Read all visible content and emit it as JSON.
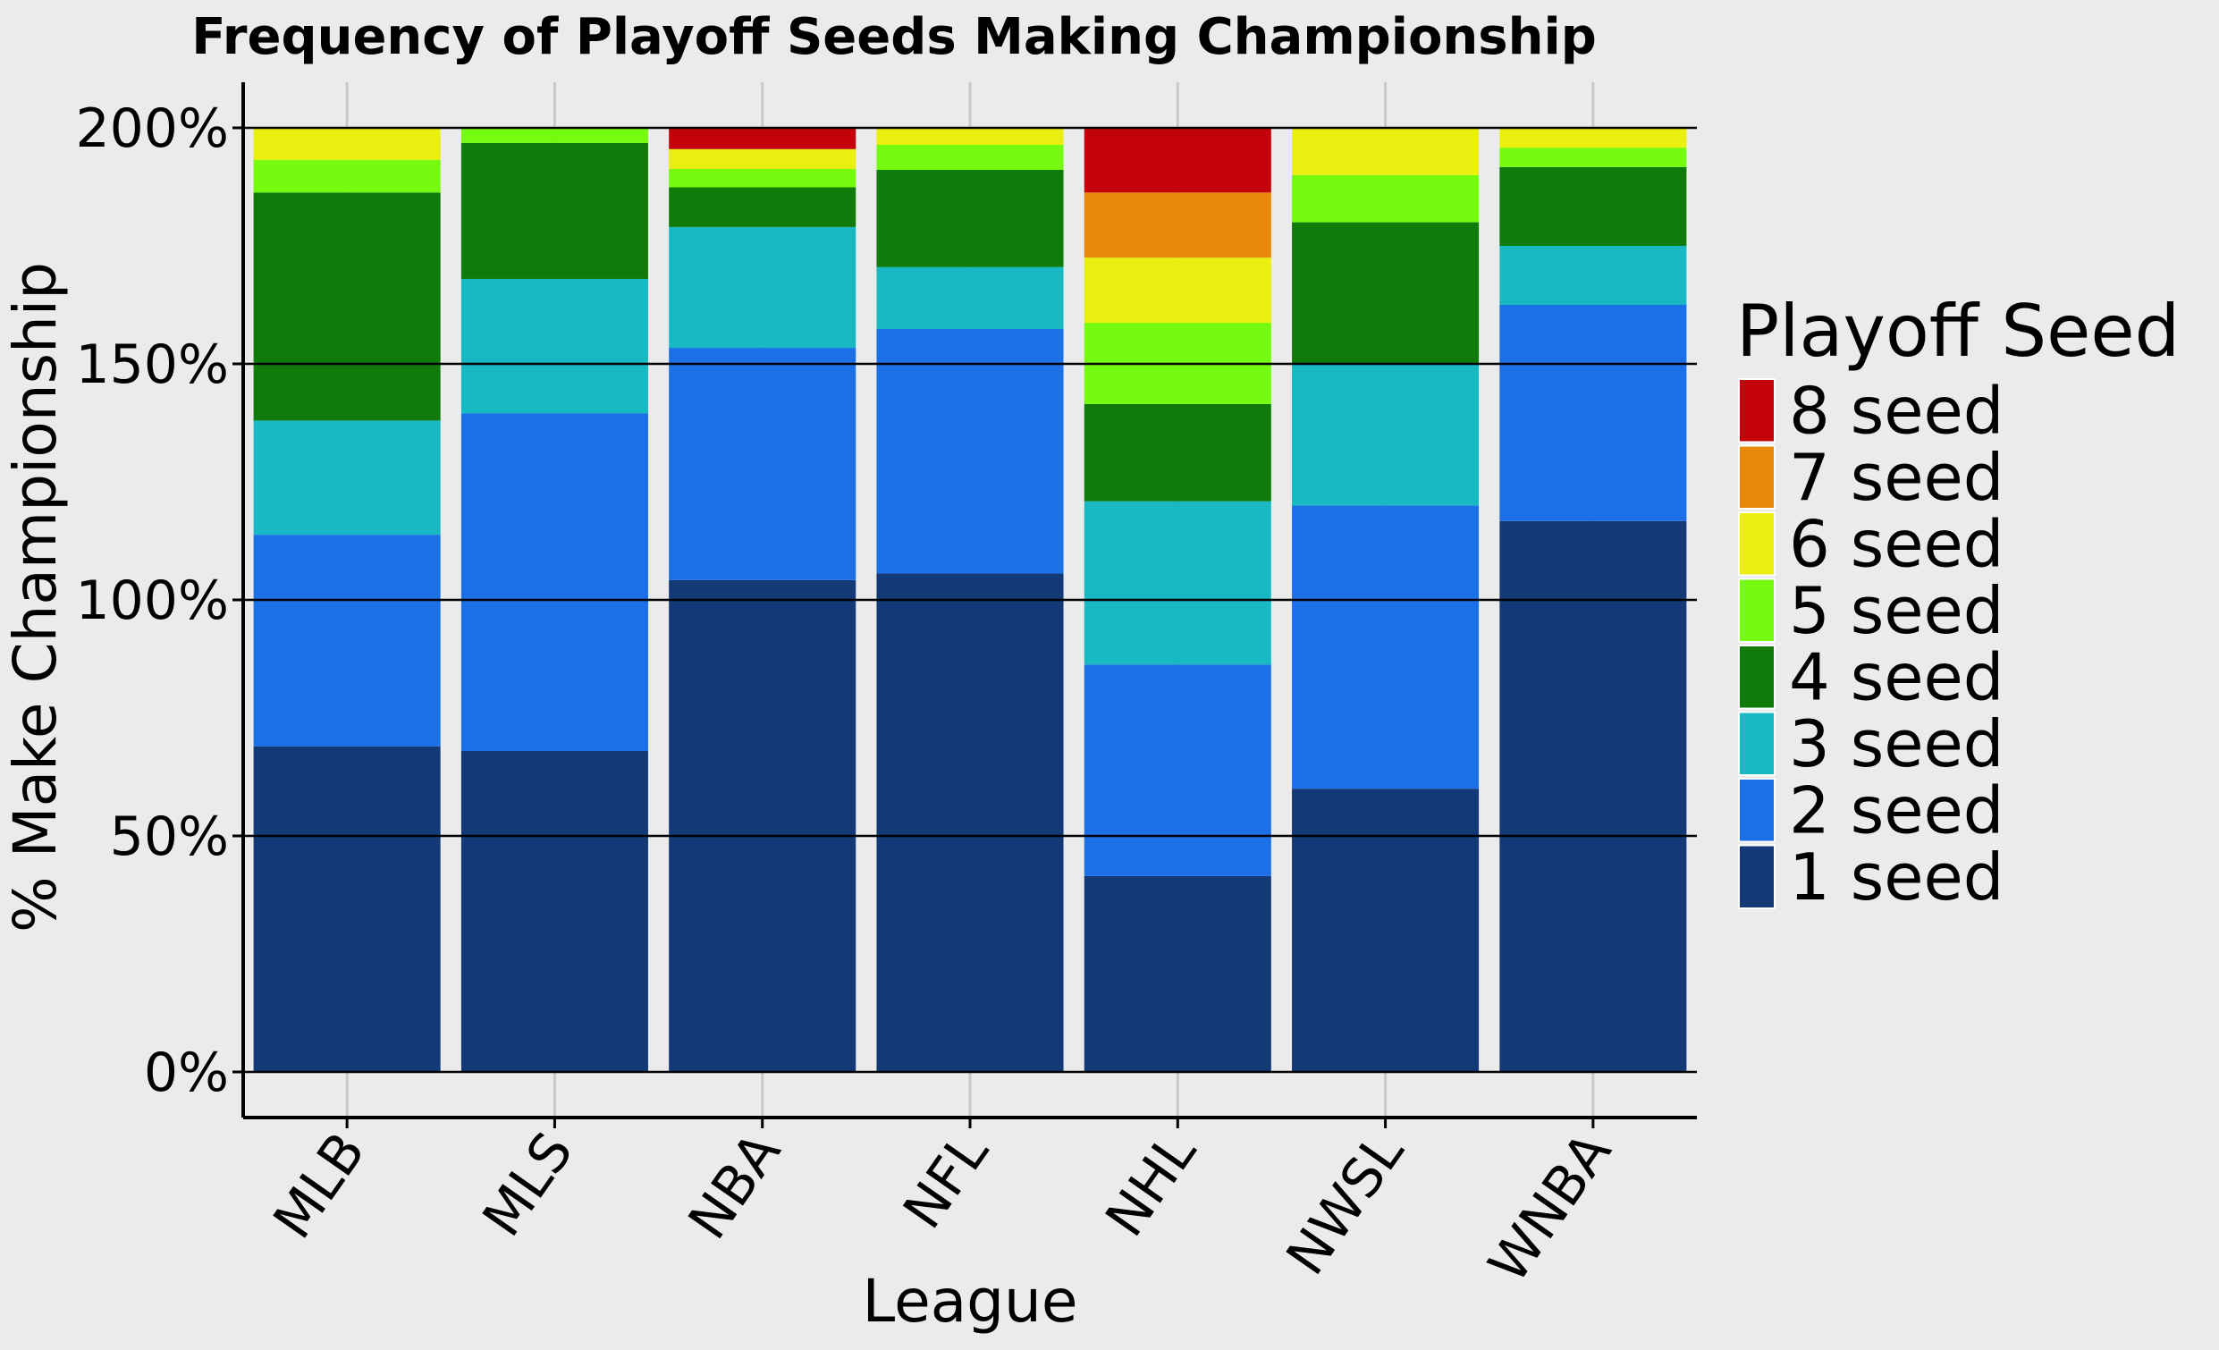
{
  "chart_data": {
    "type": "bar",
    "stacked": true,
    "title": "Frequency of Playoff Seeds Making Championship",
    "xlabel": "League",
    "ylabel": "% Make Championship",
    "categories": [
      "MLB",
      "MLS",
      "NBA",
      "NFL",
      "NHL",
      "NWSL",
      "WNBA"
    ],
    "ylim": [
      0,
      200
    ],
    "yticks": [
      0,
      50,
      100,
      150,
      200
    ],
    "ytick_labels": [
      "0%",
      "50%",
      "100%",
      "150%",
      "200%"
    ],
    "grid": true,
    "legend": {
      "title": "Playoff Seed",
      "placement": "right"
    },
    "series": [
      {
        "name": "1 seed",
        "color": "#133a76",
        "values": [
          69.0,
          68.0,
          104.2,
          105.6,
          41.5,
          60.0,
          116.7
        ]
      },
      {
        "name": "2 seed",
        "color": "#1c70e7",
        "values": [
          44.8,
          71.5,
          49.2,
          51.8,
          44.8,
          60.0,
          45.8
        ]
      },
      {
        "name": "3 seed",
        "color": "#18b9c3",
        "values": [
          24.2,
          28.5,
          25.6,
          13.1,
          34.6,
          30.0,
          12.5
        ]
      },
      {
        "name": "4 seed",
        "color": "#107b0b",
        "values": [
          48.3,
          28.8,
          8.4,
          20.6,
          20.6,
          30.0,
          16.7
        ]
      },
      {
        "name": "5 seed",
        "color": "#74fb10",
        "values": [
          6.9,
          3.2,
          3.9,
          5.3,
          17.2,
          10.0,
          4.1
        ]
      },
      {
        "name": "6 seed",
        "color": "#ebef0f",
        "values": [
          6.8,
          0,
          4.2,
          3.6,
          13.8,
          10.0,
          4.2
        ]
      },
      {
        "name": "7 seed",
        "color": "#e8880a",
        "values": [
          0,
          0,
          0,
          0,
          13.8,
          0,
          0
        ]
      },
      {
        "name": "8 seed",
        "color": "#c3020a",
        "values": [
          0,
          0,
          4.5,
          0,
          13.7,
          0,
          0
        ]
      }
    ]
  }
}
